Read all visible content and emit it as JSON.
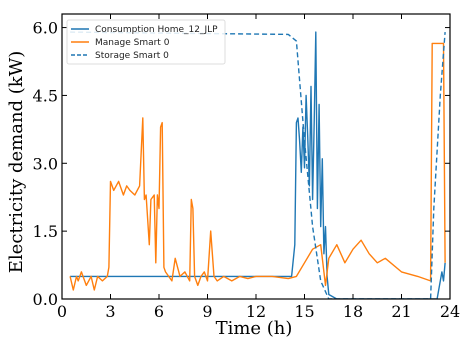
{
  "chart_data": {
    "type": "line",
    "xlabel": "Time (h)",
    "ylabel": "Electricity demand (kW)",
    "xlim": [
      0,
      24
    ],
    "ylim": [
      0,
      6.3
    ],
    "x_ticks": [
      0,
      3,
      6,
      9,
      12,
      15,
      18,
      21,
      24
    ],
    "x_tick_labels": [
      "0",
      "3",
      "6",
      "9",
      "12",
      "15",
      "18",
      "21",
      "24"
    ],
    "y_ticks": [
      0,
      1.5,
      3.0,
      4.5,
      6.0
    ],
    "y_tick_labels": [
      "0.0",
      "1.5",
      "3.0",
      "4.5",
      "6.0"
    ],
    "grid": false,
    "legend_position": "top-left",
    "colors": {
      "consumption": "#1f77b4",
      "manage": "#ff7f0e",
      "storage": "#1f77b4"
    },
    "series": [
      {
        "name": "Consumption Home_12_JLP",
        "style": "solid",
        "color": "#1f77b4",
        "x": [
          0.5,
          14.2,
          14.4,
          14.5,
          14.6,
          14.7,
          14.8,
          14.9,
          15.0,
          15.1,
          15.2,
          15.3,
          15.4,
          15.5,
          15.6,
          15.7,
          15.8,
          15.9,
          16.0,
          16.1,
          16.2,
          16.3,
          16.4,
          16.5,
          17.0,
          20.0,
          23.2,
          23.5,
          23.6,
          23.7
        ],
        "y": [
          0.5,
          0.5,
          1.2,
          3.9,
          4.0,
          3.5,
          2.8,
          3.8,
          2.9,
          4.5,
          3.6,
          2.5,
          4.7,
          2.2,
          3.9,
          5.9,
          2.0,
          4.3,
          1.6,
          3.1,
          1.0,
          1.6,
          0.5,
          0.1,
          0.0,
          0.0,
          0.0,
          0.6,
          0.4,
          0.8
        ]
      },
      {
        "name": "Manage Smart 0",
        "style": "solid",
        "color": "#ff7f0e",
        "x": [
          0.5,
          0.7,
          0.9,
          1.0,
          1.2,
          1.5,
          1.8,
          2.0,
          2.2,
          2.5,
          2.8,
          2.9,
          3.0,
          3.2,
          3.5,
          3.8,
          4.0,
          4.2,
          4.5,
          4.8,
          5.0,
          5.1,
          5.2,
          5.4,
          5.5,
          5.7,
          5.8,
          5.9,
          6.0,
          6.1,
          6.2,
          6.3,
          6.4,
          6.6,
          6.8,
          7.0,
          7.3,
          7.6,
          7.9,
          8.0,
          8.1,
          8.2,
          8.4,
          8.6,
          8.8,
          9.0,
          9.2,
          9.4,
          9.6,
          10.0,
          10.5,
          11.0,
          11.5,
          12.0,
          13.0,
          14.0,
          14.5,
          15.0,
          15.5,
          16.0,
          16.3,
          16.5,
          17.0,
          17.5,
          18.0,
          18.5,
          19.0,
          19.5,
          20.0,
          21.0,
          22.0,
          22.8,
          22.9,
          23.5,
          23.6,
          23.7
        ],
        "y": [
          0.5,
          0.2,
          0.5,
          0.4,
          0.6,
          0.3,
          0.5,
          0.2,
          0.5,
          0.4,
          0.5,
          0.7,
          2.6,
          2.4,
          2.6,
          2.3,
          2.5,
          2.4,
          2.3,
          2.5,
          4.0,
          2.2,
          2.3,
          1.2,
          2.2,
          2.3,
          0.8,
          2.3,
          2.0,
          3.8,
          3.9,
          0.7,
          0.6,
          0.5,
          0.4,
          0.9,
          0.5,
          0.6,
          0.4,
          2.2,
          2.0,
          0.5,
          0.3,
          0.5,
          0.6,
          0.4,
          1.5,
          0.5,
          0.4,
          0.5,
          0.4,
          0.5,
          0.45,
          0.5,
          0.5,
          0.45,
          0.5,
          0.8,
          1.1,
          1.2,
          0.3,
          0.9,
          1.2,
          0.8,
          1.1,
          1.3,
          1.0,
          0.8,
          0.9,
          0.6,
          0.5,
          0.4,
          5.65,
          5.65,
          5.65,
          0.8
        ]
      },
      {
        "name": "Storage Smart 0",
        "style": "dashed",
        "color": "#1f77b4",
        "x": [
          0.5,
          14.0,
          14.5,
          15.0,
          15.5,
          16.0,
          16.5,
          17.0,
          22.8,
          23.0,
          23.4,
          23.7
        ],
        "y": [
          5.9,
          5.85,
          5.7,
          3.5,
          1.6,
          0.4,
          0.0,
          0.0,
          0.0,
          2.0,
          4.5,
          5.9
        ]
      }
    ]
  }
}
